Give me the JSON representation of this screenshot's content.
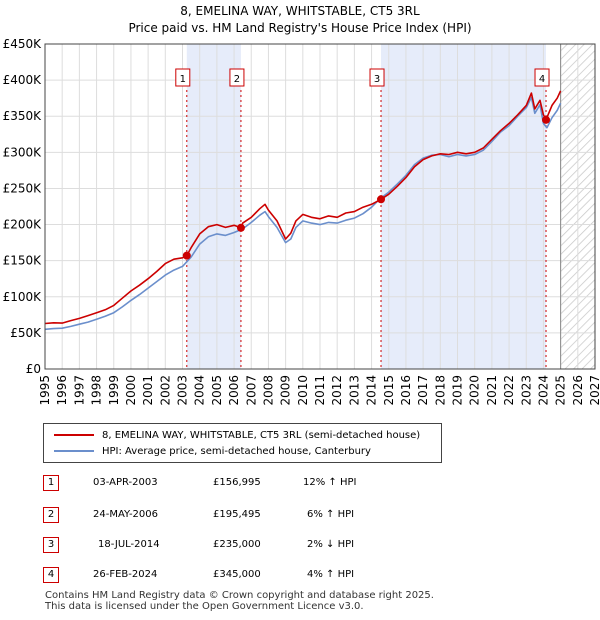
{
  "title": "8, EMELINA WAY, WHITSTABLE, CT5 3RL",
  "subtitle": "Price paid vs. HM Land Registry's House Price Index (HPI)",
  "colors": {
    "property": "#cc0000",
    "hpi": "#6b8fcc",
    "shade": "#e6ecfa",
    "marker": "#cc0000"
  },
  "chart_data": {
    "type": "line",
    "title": "8, EMELINA WAY, WHITSTABLE, CT5 3RL",
    "subtitle": "Price paid vs. HM Land Registry's House Price Index (HPI)",
    "xlim": [
      1995,
      2027
    ],
    "ylim": [
      0,
      450000
    ],
    "x_ticks": [
      "1995",
      "1996",
      "1997",
      "1998",
      "1999",
      "2000",
      "2001",
      "2002",
      "2003",
      "2004",
      "2005",
      "2006",
      "2007",
      "2008",
      "2009",
      "2010",
      "2011",
      "2012",
      "2013",
      "2014",
      "2015",
      "2016",
      "2017",
      "2018",
      "2019",
      "2020",
      "2021",
      "2022",
      "2023",
      "2024",
      "2025",
      "2026",
      "2027"
    ],
    "y_ticks": [
      {
        "value": 0,
        "label": "£0"
      },
      {
        "value": 50000,
        "label": "£50K"
      },
      {
        "value": 100000,
        "label": "£100K"
      },
      {
        "value": 150000,
        "label": "£150K"
      },
      {
        "value": 200000,
        "label": "£200K"
      },
      {
        "value": 250000,
        "label": "£250K"
      },
      {
        "value": 300000,
        "label": "£300K"
      },
      {
        "value": 350000,
        "label": "£350K"
      },
      {
        "value": 400000,
        "label": "£400K"
      },
      {
        "value": 450000,
        "label": "£450K"
      }
    ],
    "forecast_start": 2025.0,
    "series": [
      {
        "name": "8, EMELINA WAY, WHITSTABLE, CT5 3RL (semi-detached house)",
        "x": [
          1995.0,
          1995.5,
          1996.0,
          1996.5,
          1997.0,
          1997.5,
          1998.0,
          1998.5,
          1999.0,
          1999.5,
          2000.0,
          2000.5,
          2001.0,
          2001.5,
          2002.0,
          2002.5,
          2003.0,
          2003.25,
          2003.5,
          2004.0,
          2004.5,
          2005.0,
          2005.5,
          2006.0,
          2006.4,
          2006.5,
          2007.0,
          2007.5,
          2007.8,
          2008.0,
          2008.5,
          2009.0,
          2009.3,
          2009.6,
          2010.0,
          2010.5,
          2011.0,
          2011.5,
          2012.0,
          2012.5,
          2013.0,
          2013.5,
          2014.0,
          2014.55,
          2015.0,
          2015.5,
          2016.0,
          2016.5,
          2017.0,
          2017.5,
          2018.0,
          2018.5,
          2019.0,
          2019.5,
          2020.0,
          2020.5,
          2021.0,
          2021.5,
          2022.0,
          2022.5,
          2023.0,
          2023.3,
          2023.5,
          2023.8,
          2024.0,
          2024.15,
          2024.5,
          2024.8,
          2025.0
        ],
        "values": [
          63000,
          64000,
          63500,
          67000,
          70000,
          74000,
          78000,
          82000,
          88000,
          98000,
          108000,
          116000,
          125000,
          135000,
          146000,
          152000,
          154000,
          156995,
          168000,
          187000,
          197000,
          200000,
          196000,
          199000,
          195495,
          202000,
          210000,
          222000,
          228000,
          220000,
          205000,
          180000,
          188000,
          205000,
          214000,
          210000,
          208000,
          212000,
          210000,
          216000,
          218000,
          224000,
          228000,
          235000,
          242000,
          253000,
          265000,
          280000,
          290000,
          295000,
          298000,
          297000,
          300000,
          298000,
          300000,
          306000,
          318000,
          330000,
          340000,
          352000,
          365000,
          382000,
          360000,
          372000,
          352000,
          345000,
          365000,
          375000,
          385000
        ]
      },
      {
        "name": "HPI: Average price, semi-detached house, Canterbury",
        "x": [
          1995.0,
          1995.5,
          1996.0,
          1996.5,
          1997.0,
          1997.5,
          1998.0,
          1998.5,
          1999.0,
          1999.5,
          2000.0,
          2000.5,
          2001.0,
          2001.5,
          2002.0,
          2002.5,
          2003.0,
          2003.5,
          2004.0,
          2004.5,
          2005.0,
          2005.5,
          2006.0,
          2006.5,
          2007.0,
          2007.5,
          2007.8,
          2008.0,
          2008.5,
          2009.0,
          2009.3,
          2009.6,
          2010.0,
          2010.5,
          2011.0,
          2011.5,
          2012.0,
          2012.5,
          2013.0,
          2013.5,
          2014.0,
          2014.5,
          2015.0,
          2015.5,
          2016.0,
          2016.5,
          2017.0,
          2017.5,
          2018.0,
          2018.5,
          2019.0,
          2019.5,
          2020.0,
          2020.5,
          2021.0,
          2021.5,
          2022.0,
          2022.5,
          2023.0,
          2023.3,
          2023.5,
          2023.8,
          2024.0,
          2024.2,
          2024.5,
          2024.8,
          2025.0
        ],
        "values": [
          55000,
          56000,
          56500,
          59000,
          62000,
          65000,
          69000,
          73000,
          78000,
          86000,
          95000,
          103000,
          112000,
          121000,
          130000,
          137000,
          142000,
          155000,
          173000,
          183000,
          187000,
          185000,
          189000,
          194000,
          203000,
          213000,
          218000,
          211000,
          196000,
          175000,
          180000,
          196000,
          205000,
          202000,
          200000,
          203000,
          202000,
          206000,
          209000,
          215000,
          224000,
          236000,
          245000,
          256000,
          268000,
          283000,
          292000,
          296000,
          297000,
          294000,
          297000,
          295000,
          297000,
          303000,
          315000,
          328000,
          337000,
          350000,
          362000,
          376000,
          354000,
          366000,
          340000,
          334000,
          348000,
          358000,
          368000
        ]
      }
    ],
    "sales": [
      {
        "id": "1",
        "x": 2003.25,
        "value": 156995,
        "date": "03-APR-2003",
        "price": "£156,995",
        "hpi": "12% ↑ HPI"
      },
      {
        "id": "2",
        "x": 2006.4,
        "value": 195495,
        "date": "24-MAY-2006",
        "price": "£195,495",
        "hpi": "6% ↑ HPI"
      },
      {
        "id": "3",
        "x": 2014.55,
        "value": 235000,
        "date": "18-JUL-2014",
        "price": "£235,000",
        "hpi": "2% ↓ HPI"
      },
      {
        "id": "4",
        "x": 2024.15,
        "value": 345000,
        "date": "26-FEB-2024",
        "price": "£345,000",
        "hpi": "4% ↑ HPI"
      }
    ],
    "shaded_ranges": [
      [
        2003.25,
        2006.4
      ],
      [
        2014.55,
        2024.15
      ]
    ]
  },
  "legend": {
    "property_label": "8, EMELINA WAY, WHITSTABLE, CT5 3RL (semi-detached house)",
    "hpi_label": "HPI: Average price, semi-detached house, Canterbury"
  },
  "table": [
    {
      "num": "1",
      "date": "03-APR-2003",
      "price": "£156,995",
      "hpi": "12% ↑ HPI"
    },
    {
      "num": "2",
      "date": "24-MAY-2006",
      "price": "£195,495",
      "hpi": "6% ↑ HPI"
    },
    {
      "num": "3",
      "date": "18-JUL-2014",
      "price": "£235,000",
      "hpi": "2% ↓ HPI"
    },
    {
      "num": "4",
      "date": "26-FEB-2024",
      "price": "£345,000",
      "hpi": "4% ↑ HPI"
    }
  ],
  "footer": {
    "line1": "Contains HM Land Registry data © Crown copyright and database right 2025.",
    "line2": "This data is licensed under the Open Government Licence v3.0."
  }
}
